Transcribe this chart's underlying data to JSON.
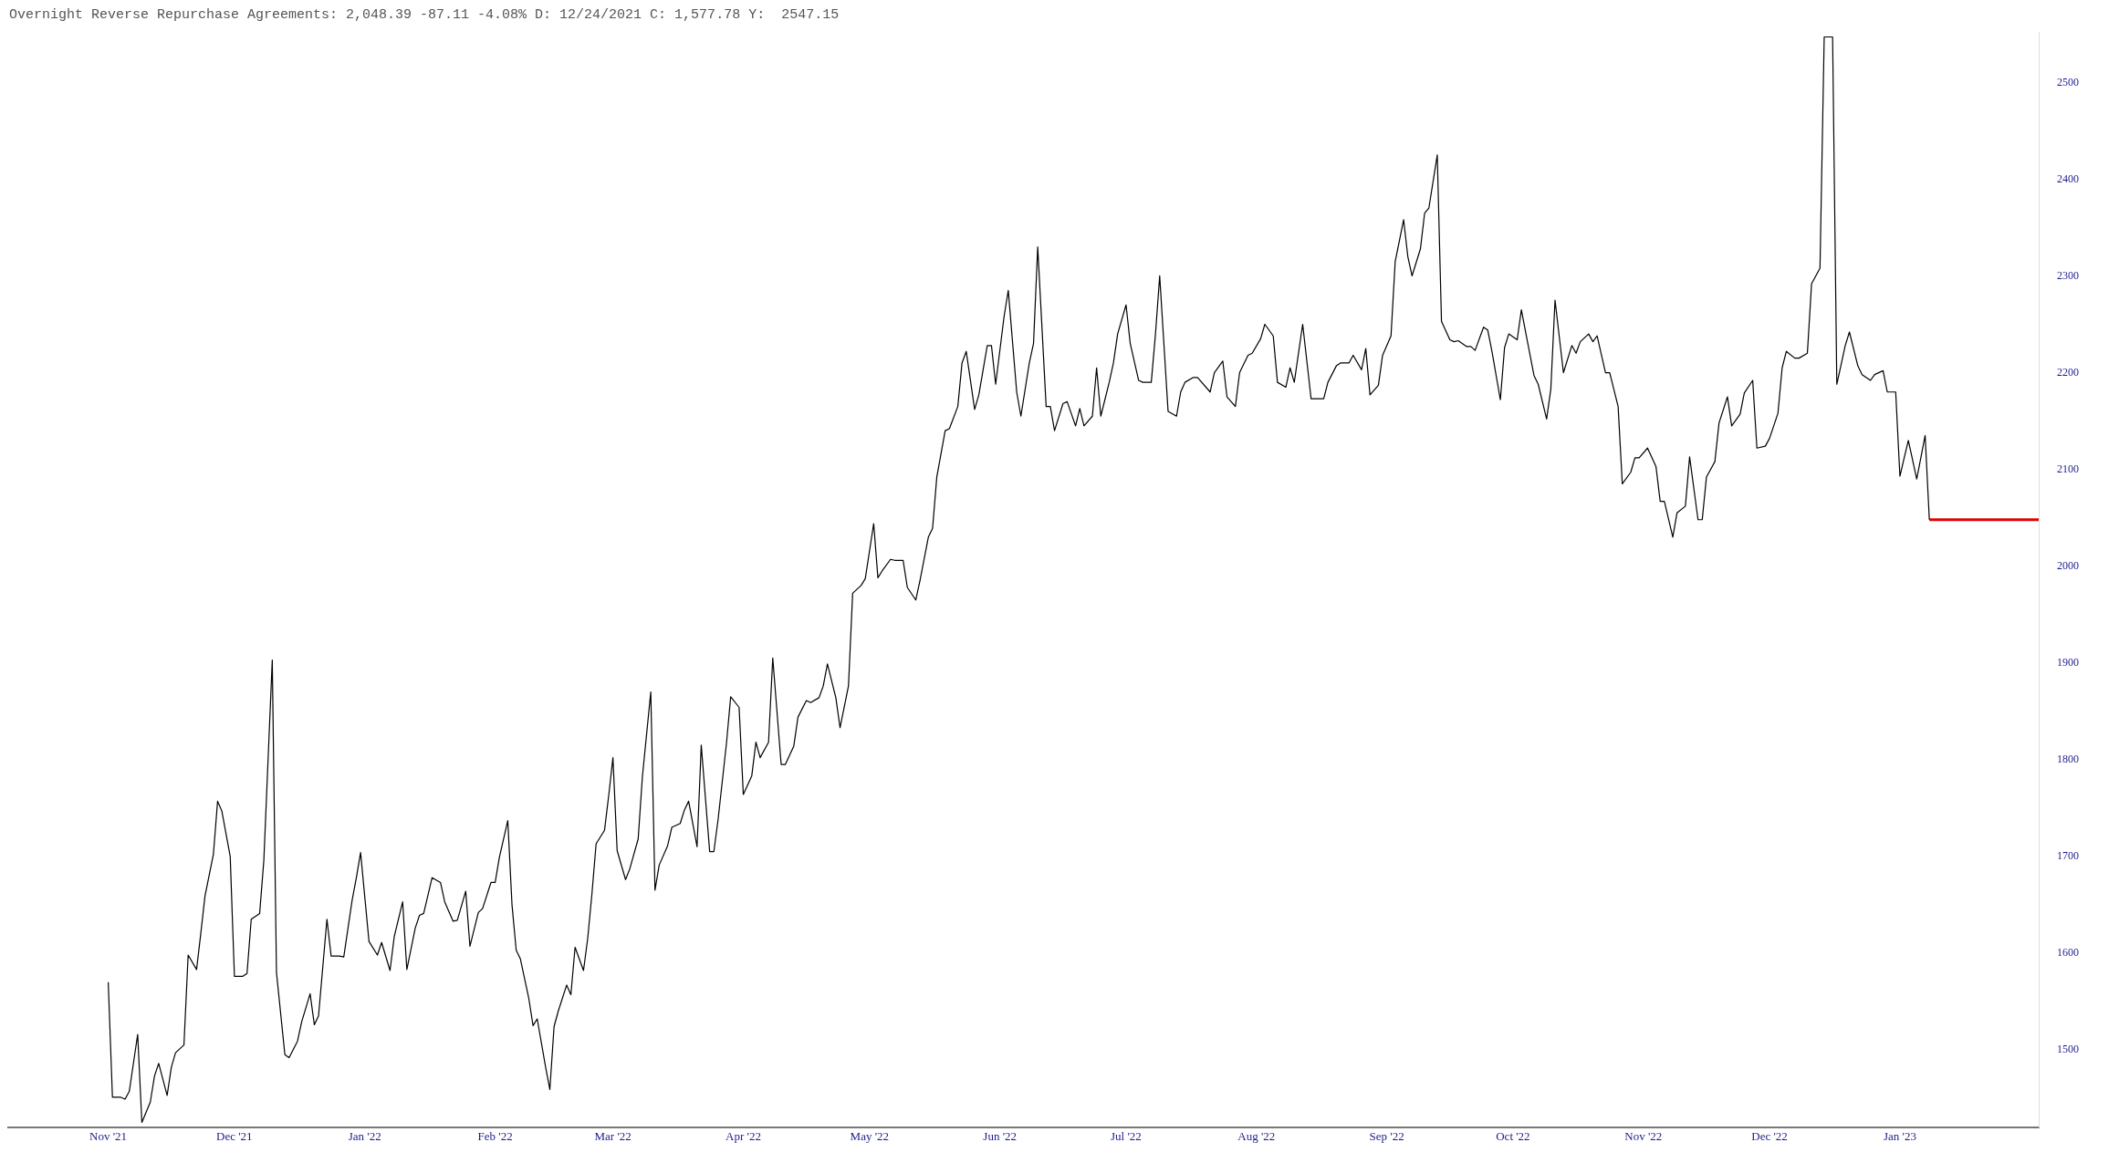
{
  "chart_data": {
    "type": "line",
    "title": "Overnight Reverse Repurchase Agreements: 2,048.39 -87.11 -4.08% D: 12/24/2021 C: 1,577.78 Y:  2547.15",
    "x": [
      "2021-11-01",
      "2021-11-02",
      "2021-11-04",
      "2021-11-05",
      "2021-11-06",
      "2021-11-08",
      "2021-11-09",
      "2021-11-11",
      "2021-11-12",
      "2021-11-13",
      "2021-11-15",
      "2021-11-16",
      "2021-11-17",
      "2021-11-19",
      "2021-11-20",
      "2021-11-22",
      "2021-11-23",
      "2021-11-24",
      "2021-11-26",
      "2021-11-27",
      "2021-11-28",
      "2021-11-30",
      "2021-12-01",
      "2021-12-03",
      "2021-12-04",
      "2021-12-05",
      "2021-12-07",
      "2021-12-08",
      "2021-12-10",
      "2021-12-11",
      "2021-12-13",
      "2021-12-14",
      "2021-12-16",
      "2021-12-17",
      "2021-12-19",
      "2021-12-20",
      "2021-12-21",
      "2021-12-23",
      "2021-12-24",
      "2021-12-26",
      "2021-12-27",
      "2021-12-29",
      "2021-12-30",
      "2021-12-31",
      "2022-01-02",
      "2022-01-04",
      "2022-01-05",
      "2022-01-07",
      "2022-01-08",
      "2022-01-10",
      "2022-01-11",
      "2022-01-13",
      "2022-01-14",
      "2022-01-15",
      "2022-01-17",
      "2022-01-19",
      "2022-01-20",
      "2022-01-22",
      "2022-01-23",
      "2022-01-25",
      "2022-01-26",
      "2022-01-28",
      "2022-01-29",
      "2022-01-31",
      "2022-02-01",
      "2022-02-02",
      "2022-02-04",
      "2022-02-05",
      "2022-02-06",
      "2022-02-07",
      "2022-02-09",
      "2022-02-10",
      "2022-02-11",
      "2022-02-13",
      "2022-02-14",
      "2022-02-15",
      "2022-02-16",
      "2022-02-18",
      "2022-02-19",
      "2022-02-20",
      "2022-02-22",
      "2022-02-23",
      "2022-02-24",
      "2022-02-25",
      "2022-02-27",
      "2022-02-28",
      "2022-03-01",
      "2022-03-02",
      "2022-03-04",
      "2022-03-05",
      "2022-03-07",
      "2022-03-08",
      "2022-03-10",
      "2022-03-11",
      "2022-03-12",
      "2022-03-14",
      "2022-03-15",
      "2022-03-17",
      "2022-03-18",
      "2022-03-19",
      "2022-03-21",
      "2022-03-22",
      "2022-03-24",
      "2022-03-25",
      "2022-03-26",
      "2022-03-28",
      "2022-03-29",
      "2022-03-31",
      "2022-04-01",
      "2022-04-03",
      "2022-04-04",
      "2022-04-05",
      "2022-04-07",
      "2022-04-08",
      "2022-04-10",
      "2022-04-11",
      "2022-04-13",
      "2022-04-14",
      "2022-04-16",
      "2022-04-17",
      "2022-04-19",
      "2022-04-20",
      "2022-04-21",
      "2022-04-23",
      "2022-04-24",
      "2022-04-26",
      "2022-04-27",
      "2022-04-29",
      "2022-04-30",
      "2022-05-02",
      "2022-05-03",
      "2022-05-04",
      "2022-05-06",
      "2022-05-07",
      "2022-05-09",
      "2022-05-10",
      "2022-05-12",
      "2022-05-13",
      "2022-05-15",
      "2022-05-16",
      "2022-05-17",
      "2022-05-19",
      "2022-05-20",
      "2022-05-22",
      "2022-05-23",
      "2022-05-24",
      "2022-05-26",
      "2022-05-27",
      "2022-05-29",
      "2022-05-30",
      "2022-05-31",
      "2022-06-02",
      "2022-06-03",
      "2022-06-05",
      "2022-06-06",
      "2022-06-08",
      "2022-06-09",
      "2022-06-10",
      "2022-06-12",
      "2022-06-13",
      "2022-06-14",
      "2022-06-16",
      "2022-06-17",
      "2022-06-19",
      "2022-06-20",
      "2022-06-21",
      "2022-06-23",
      "2022-06-24",
      "2022-06-25",
      "2022-06-27",
      "2022-06-28",
      "2022-06-29",
      "2022-07-01",
      "2022-07-02",
      "2022-07-04",
      "2022-07-05",
      "2022-07-07",
      "2022-07-08",
      "2022-07-09",
      "2022-07-11",
      "2022-07-13",
      "2022-07-14",
      "2022-07-15",
      "2022-07-17",
      "2022-07-18",
      "2022-07-21",
      "2022-07-22",
      "2022-07-24",
      "2022-07-25",
      "2022-07-27",
      "2022-07-28",
      "2022-07-30",
      "2022-07-31",
      "2022-08-02",
      "2022-08-03",
      "2022-08-05",
      "2022-08-06",
      "2022-08-08",
      "2022-08-09",
      "2022-08-10",
      "2022-08-12",
      "2022-08-14",
      "2022-08-15",
      "2022-08-17",
      "2022-08-18",
      "2022-08-20",
      "2022-08-21",
      "2022-08-23",
      "2022-08-24",
      "2022-08-26",
      "2022-08-27",
      "2022-08-28",
      "2022-08-30",
      "2022-08-31",
      "2022-09-02",
      "2022-09-03",
      "2022-09-05",
      "2022-09-06",
      "2022-09-07",
      "2022-09-09",
      "2022-09-10",
      "2022-09-11",
      "2022-09-13",
      "2022-09-14",
      "2022-09-16",
      "2022-09-17",
      "2022-09-18",
      "2022-09-20",
      "2022-09-21",
      "2022-09-22",
      "2022-09-24",
      "2022-09-25",
      "2022-09-26",
      "2022-09-28",
      "2022-09-29",
      "2022-09-30",
      "2022-10-02",
      "2022-10-03",
      "2022-10-04",
      "2022-10-06",
      "2022-10-07",
      "2022-10-09",
      "2022-10-10",
      "2022-10-11",
      "2022-10-13",
      "2022-10-15",
      "2022-10-16",
      "2022-10-17",
      "2022-10-19",
      "2022-10-20",
      "2022-10-21",
      "2022-10-23",
      "2022-10-24",
      "2022-10-26",
      "2022-10-27",
      "2022-10-29",
      "2022-10-30",
      "2022-10-31",
      "2022-11-02",
      "2022-11-04",
      "2022-11-05",
      "2022-11-06",
      "2022-11-08",
      "2022-11-09",
      "2022-11-11",
      "2022-11-12",
      "2022-11-14",
      "2022-11-15",
      "2022-11-16",
      "2022-11-18",
      "2022-11-19",
      "2022-11-21",
      "2022-11-22",
      "2022-11-24",
      "2022-11-25",
      "2022-11-27",
      "2022-11-28",
      "2022-11-30",
      "2022-12-01",
      "2022-12-03",
      "2022-12-04",
      "2022-12-05",
      "2022-12-07",
      "2022-12-08",
      "2022-12-10",
      "2022-12-11",
      "2022-12-13",
      "2022-12-14",
      "2022-12-16",
      "2022-12-17",
      "2022-12-19",
      "2022-12-20",
      "2022-12-22",
      "2022-12-23",
      "2022-12-25",
      "2022-12-26",
      "2022-12-28",
      "2022-12-29",
      "2022-12-31",
      "2023-01-01",
      "2023-01-03",
      "2023-01-04",
      "2023-01-05",
      "2023-01-07",
      "2023-01-08"
    ],
    "series": [
      {
        "color": "#000000",
        "values": [
          1570,
          1451,
          1451,
          1449,
          1457,
          1516,
          1425,
          1446,
          1473,
          1486,
          1453,
          1482,
          1497,
          1505,
          1598,
          1583,
          1620,
          1659,
          1702,
          1757,
          1747,
          1700,
          1576,
          1576,
          1579,
          1635,
          1641,
          1696,
          1903,
          1580,
          1495,
          1492,
          1509,
          1529,
          1558,
          1526,
          1535,
          1635,
          1597,
          1597,
          1596,
          1655,
          1678,
          1704,
          1612,
          1598,
          1611,
          1582,
          1617,
          1653,
          1583,
          1626,
          1639,
          1641,
          1678,
          1673,
          1653,
          1633,
          1634,
          1664,
          1607,
          1642,
          1646,
          1673,
          1673,
          1699,
          1737,
          1650,
          1603,
          1594,
          1553,
          1525,
          1532,
          1482,
          1459,
          1524,
          1540,
          1567,
          1557,
          1606,
          1582,
          1615,
          1661,
          1713,
          1727,
          1763,
          1802,
          1706,
          1676,
          1687,
          1718,
          1782,
          1870,
          1665,
          1691,
          1711,
          1730,
          1734,
          1748,
          1757,
          1710,
          1815,
          1705,
          1705,
          1738,
          1817,
          1865,
          1854,
          1764,
          1783,
          1818,
          1802,
          1818,
          1905,
          1795,
          1795,
          1814,
          1844,
          1861,
          1859,
          1864,
          1876,
          1899,
          1864,
          1833,
          1876,
          1972,
          1980,
          1987,
          2044,
          1988,
          1995,
          2007,
          2006,
          2006,
          1978,
          1965,
          1985,
          2030,
          2039,
          2092,
          2140,
          2142,
          2165,
          2210,
          2222,
          2162,
          2177,
          2228,
          2228,
          2188,
          2258,
          2285,
          2180,
          2155,
          2210,
          2230,
          2330,
          2165,
          2165,
          2140,
          2168,
          2170,
          2145,
          2163,
          2145,
          2155,
          2205,
          2155,
          2190,
          2210,
          2240,
          2270,
          2230,
          2192,
          2190,
          2190,
          2240,
          2300,
          2160,
          2155,
          2180,
          2190,
          2195,
          2195,
          2180,
          2200,
          2212,
          2175,
          2165,
          2200,
          2218,
          2220,
          2235,
          2250,
          2238,
          2190,
          2185,
          2205,
          2190,
          2250,
          2173,
          2173,
          2173,
          2190,
          2207,
          2210,
          2210,
          2218,
          2203,
          2225,
          2177,
          2187,
          2218,
          2238,
          2315,
          2358,
          2320,
          2300,
          2328,
          2365,
          2370,
          2425,
          2253,
          2234,
          2232,
          2233,
          2227,
          2227,
          2223,
          2247,
          2244,
          2222,
          2172,
          2226,
          2240,
          2234,
          2265,
          2242,
          2197,
          2188,
          2152,
          2183,
          2275,
          2200,
          2228,
          2220,
          2232,
          2240,
          2232,
          2238,
          2200,
          2200,
          2165,
          2085,
          2097,
          2112,
          2112,
          2122,
          2103,
          2067,
          2067,
          2030,
          2055,
          2062,
          2113,
          2048,
          2048,
          2092,
          2108,
          2148,
          2175,
          2145,
          2157,
          2179,
          2192,
          2122,
          2124,
          2132,
          2158,
          2205,
          2222,
          2215,
          2215,
          2220,
          2292,
          2308,
          2547,
          2547,
          2188,
          2228,
          2242,
          2207,
          2198,
          2192,
          2198,
          2202,
          2180,
          2180,
          2093,
          2130,
          2110,
          2090,
          2135,
          2048
        ]
      },
      {
        "color": "#e00000",
        "x": [
          "2023-01-08",
          "2023-02-03"
        ],
        "values": [
          2048,
          2048
        ]
      }
    ],
    "xlim": [
      "2021-10-08",
      "2023-02-03"
    ],
    "xticks": [
      {
        "value": "2021-11-01",
        "label": "Nov '21"
      },
      {
        "value": "2021-12-01",
        "label": "Dec '21"
      },
      {
        "value": "2022-01-01",
        "label": "Jan '22"
      },
      {
        "value": "2022-02-01",
        "label": "Feb '22"
      },
      {
        "value": "2022-03-01",
        "label": "Mar '22"
      },
      {
        "value": "2022-04-01",
        "label": "Apr '22"
      },
      {
        "value": "2022-05-01",
        "label": "May '22"
      },
      {
        "value": "2022-06-01",
        "label": "Jun '22"
      },
      {
        "value": "2022-07-01",
        "label": "Jul '22"
      },
      {
        "value": "2022-08-01",
        "label": "Aug '22"
      },
      {
        "value": "2022-09-01",
        "label": "Sep '22"
      },
      {
        "value": "2022-10-01",
        "label": "Oct '22"
      },
      {
        "value": "2022-11-01",
        "label": "Nov '22"
      },
      {
        "value": "2022-12-01",
        "label": "Dec '22"
      },
      {
        "value": "2023-01-01",
        "label": "Jan '23"
      }
    ],
    "ylim": [
      1420,
      2552
    ],
    "yticks": [
      1500,
      1600,
      1700,
      1800,
      1900,
      2000,
      2100,
      2200,
      2300,
      2400,
      2500
    ],
    "grid": false,
    "legend": false
  }
}
